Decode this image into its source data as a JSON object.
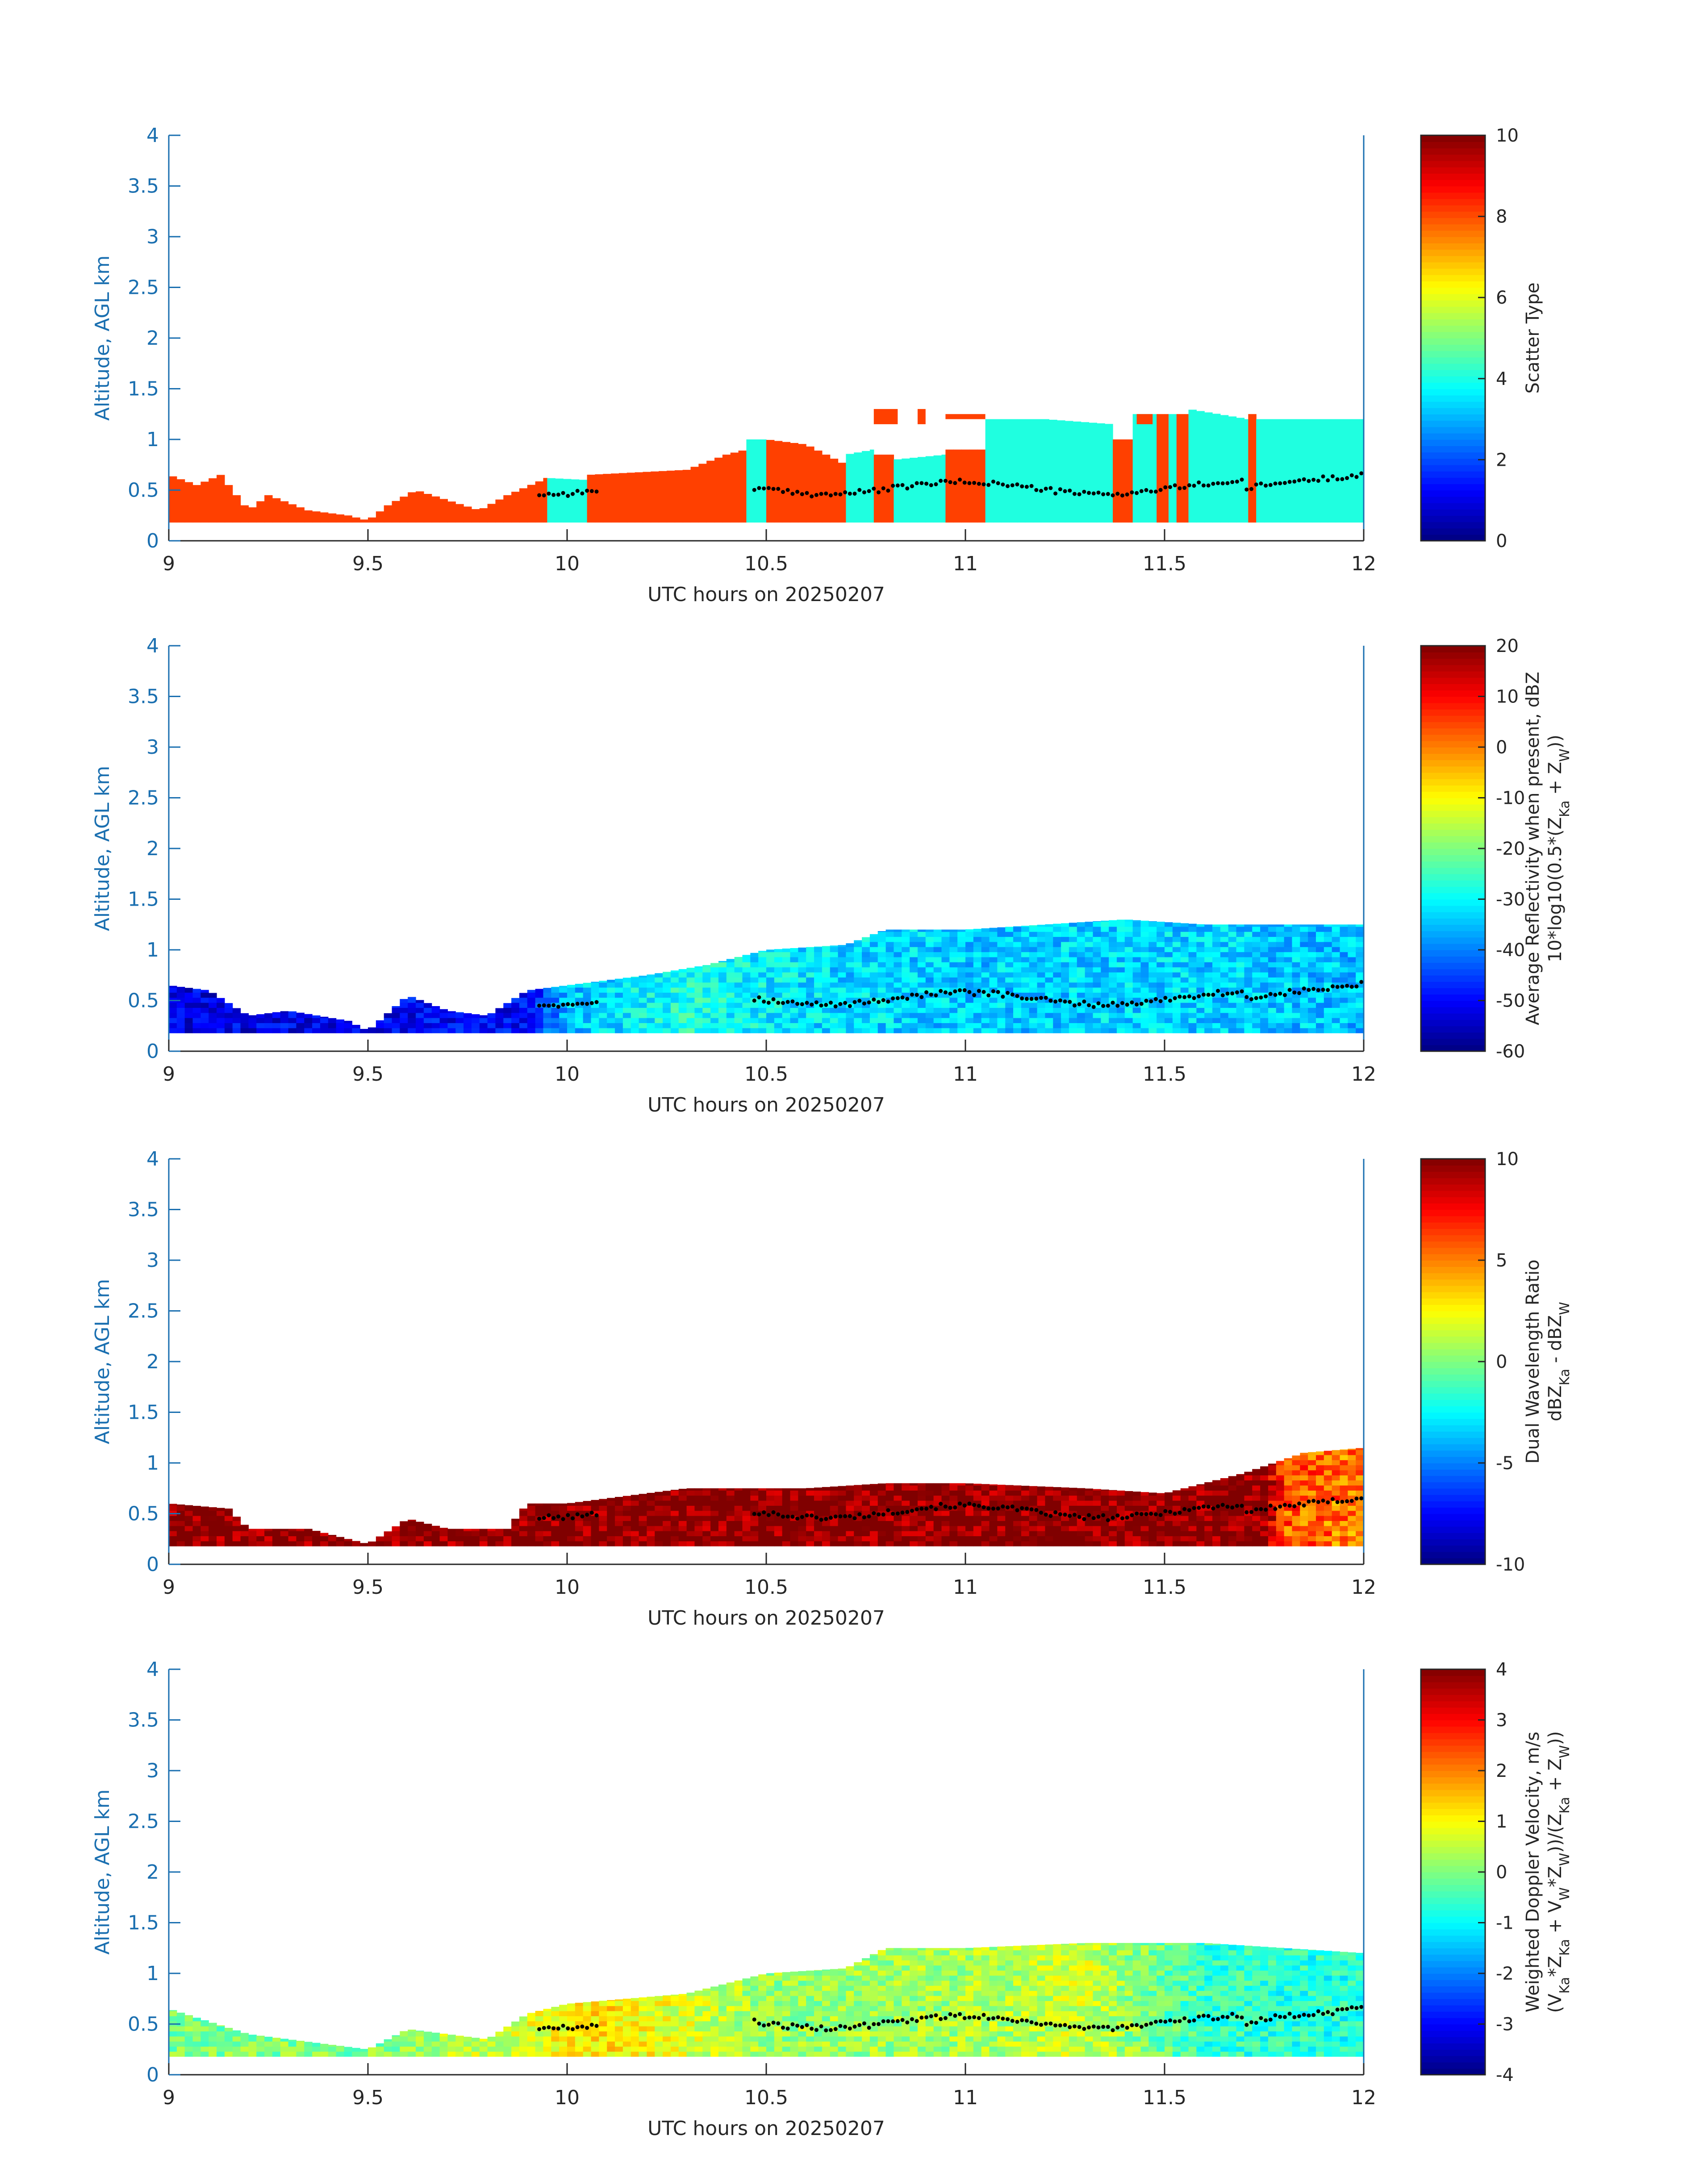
{
  "figure": {
    "axis_color": "#1a6fb0",
    "text_color": "#262626",
    "colormap": "jet"
  },
  "chart_data": [
    {
      "type": "heatmap",
      "title": "",
      "xlabel": "UTC hours on 20250207",
      "ylabel": "Altitude, AGL km",
      "xlim": [
        9,
        12
      ],
      "ylim": [
        0,
        4
      ],
      "xticks": [
        "9",
        "9.5",
        "10",
        "10.5",
        "11",
        "11.5",
        "12"
      ],
      "yticks": [
        "0",
        "0.5",
        "1",
        "1.5",
        "2",
        "2.5",
        "3",
        "3.5",
        "4"
      ],
      "colorbar": {
        "clim": [
          0,
          10
        ],
        "ticks": [
          "0",
          "2",
          "4",
          "6",
          "8",
          "10"
        ],
        "label_lines": [
          "Scatter Type"
        ]
      },
      "field": {
        "kind": "categorical",
        "classes": [
          {
            "value": 8.8,
            "color": "#ff4000"
          },
          {
            "value": 3.8,
            "color": "#1fffe0"
          }
        ],
        "segments": [
          {
            "x0": 9.0,
            "x1": 9.95,
            "class": 8.8,
            "top_km": [
              [
                9.0,
                0.65
              ],
              [
                9.07,
                0.55
              ],
              [
                9.13,
                0.65
              ],
              [
                9.2,
                0.3
              ],
              [
                9.25,
                0.45
              ],
              [
                9.35,
                0.3
              ],
              [
                9.45,
                0.25
              ],
              [
                9.5,
                0.2
              ],
              [
                9.55,
                0.35
              ],
              [
                9.62,
                0.5
              ],
              [
                9.7,
                0.4
              ],
              [
                9.78,
                0.3
              ],
              [
                9.85,
                0.45
              ],
              [
                9.95,
                0.62
              ]
            ]
          },
          {
            "x0": 9.95,
            "x1": 10.05,
            "class": 3.8,
            "top_km": [
              [
                9.95,
                0.62
              ],
              [
                10.05,
                0.6
              ]
            ]
          },
          {
            "x0": 10.05,
            "x1": 10.45,
            "class": 8.8,
            "top_km": [
              [
                10.05,
                0.65
              ],
              [
                10.3,
                0.7
              ],
              [
                10.4,
                0.85
              ],
              [
                10.45,
                0.9
              ]
            ]
          },
          {
            "x0": 10.45,
            "x1": 10.5,
            "class": 3.8,
            "top_km": [
              [
                10.45,
                1.0
              ],
              [
                10.5,
                1.0
              ]
            ]
          },
          {
            "x0": 10.5,
            "x1": 10.7,
            "class": 8.8,
            "top_km": [
              [
                10.5,
                1.0
              ],
              [
                10.6,
                0.95
              ],
              [
                10.7,
                0.75
              ]
            ]
          },
          {
            "x0": 10.7,
            "x1": 10.77,
            "class": 3.8,
            "top_km": [
              [
                10.7,
                0.85
              ],
              [
                10.77,
                0.9
              ]
            ]
          },
          {
            "x0": 10.77,
            "x1": 10.82,
            "class": 8.8,
            "top_km": [
              [
                10.77,
                0.85
              ],
              [
                10.82,
                0.85
              ]
            ]
          },
          {
            "x0": 10.82,
            "x1": 10.95,
            "class": 3.8,
            "top_km": [
              [
                10.82,
                0.8
              ],
              [
                10.95,
                0.85
              ]
            ]
          },
          {
            "x0": 10.95,
            "x1": 11.05,
            "class": 8.8,
            "top_km": [
              [
                10.95,
                0.9
              ],
              [
                11.05,
                0.9
              ]
            ]
          },
          {
            "x0": 11.05,
            "x1": 11.37,
            "class": 3.8,
            "top_km": [
              [
                11.05,
                1.2
              ],
              [
                11.2,
                1.2
              ],
              [
                11.37,
                1.15
              ]
            ]
          },
          {
            "x0": 11.37,
            "x1": 11.42,
            "class": 8.8,
            "top_km": [
              [
                11.37,
                1.0
              ],
              [
                11.42,
                1.0
              ]
            ]
          },
          {
            "x0": 11.42,
            "x1": 11.48,
            "class": 3.8,
            "top_km": [
              [
                11.42,
                1.25
              ],
              [
                11.48,
                1.25
              ]
            ]
          },
          {
            "x0": 11.48,
            "x1": 11.51,
            "class": 8.8,
            "top_km": [
              [
                11.48,
                1.25
              ],
              [
                11.51,
                1.25
              ]
            ]
          },
          {
            "x0": 11.51,
            "x1": 11.53,
            "class": 3.8,
            "top_km": [
              [
                11.51,
                1.25
              ],
              [
                11.53,
                1.25
              ]
            ]
          },
          {
            "x0": 11.53,
            "x1": 11.56,
            "class": 8.8,
            "top_km": [
              [
                11.53,
                1.25
              ],
              [
                11.56,
                1.25
              ]
            ]
          },
          {
            "x0": 11.56,
            "x1": 11.71,
            "class": 3.8,
            "top_km": [
              [
                11.56,
                1.3
              ],
              [
                11.71,
                1.2
              ]
            ]
          },
          {
            "x0": 11.71,
            "x1": 11.73,
            "class": 8.8,
            "top_km": [
              [
                11.71,
                1.25
              ],
              [
                11.73,
                1.25
              ]
            ]
          },
          {
            "x0": 11.73,
            "x1": 12.0,
            "class": 3.8,
            "top_km": [
              [
                11.73,
                1.2
              ],
              [
                12.0,
                1.2
              ]
            ]
          }
        ],
        "patches": [
          {
            "x0": 10.77,
            "x1": 10.83,
            "y0": 1.15,
            "y1": 1.3,
            "class": 8.8
          },
          {
            "x0": 10.88,
            "x1": 10.9,
            "y0": 1.15,
            "y1": 1.3,
            "class": 8.8
          },
          {
            "x0": 10.95,
            "x1": 11.05,
            "y0": 1.2,
            "y1": 1.25,
            "class": 8.8
          },
          {
            "x0": 11.43,
            "x1": 11.47,
            "y0": 1.15,
            "y1": 1.25,
            "class": 8.8
          }
        ]
      }
    },
    {
      "type": "heatmap",
      "title": "",
      "xlabel": "UTC hours on 20250207",
      "ylabel": "Altitude, AGL km",
      "xlim": [
        9,
        12
      ],
      "ylim": [
        0,
        4
      ],
      "xticks": [
        "9",
        "9.5",
        "10",
        "10.5",
        "11",
        "11.5",
        "12"
      ],
      "yticks": [
        "0",
        "0.5",
        "1",
        "1.5",
        "2",
        "2.5",
        "3",
        "3.5",
        "4"
      ],
      "colorbar": {
        "clim": [
          -60,
          20
        ],
        "ticks": [
          "-60",
          "-50",
          "-40",
          "-30",
          "-20",
          "-10",
          "0",
          "10",
          "20"
        ],
        "label_lines": [
          "Average Reflectivity when present, dBZ",
          "10*log10(0.5*(Z",
          "Ka",
          " + Z",
          "W",
          "))"
        ]
      },
      "field": {
        "kind": "continuous",
        "top_km": [
          [
            9.0,
            0.65
          ],
          [
            9.1,
            0.6
          ],
          [
            9.2,
            0.35
          ],
          [
            9.3,
            0.4
          ],
          [
            9.45,
            0.3
          ],
          [
            9.5,
            0.2
          ],
          [
            9.6,
            0.55
          ],
          [
            9.7,
            0.4
          ],
          [
            9.8,
            0.35
          ],
          [
            9.9,
            0.6
          ],
          [
            10.0,
            0.65
          ],
          [
            10.2,
            0.75
          ],
          [
            10.35,
            0.85
          ],
          [
            10.5,
            1.0
          ],
          [
            10.7,
            1.05
          ],
          [
            10.8,
            1.2
          ],
          [
            11.0,
            1.2
          ],
          [
            11.2,
            1.25
          ],
          [
            11.4,
            1.3
          ],
          [
            11.6,
            1.25
          ],
          [
            12.0,
            1.25
          ]
        ],
        "profile": [
          [
            9.0,
            -52
          ],
          [
            9.9,
            -50
          ],
          [
            10.0,
            -35
          ],
          [
            10.3,
            -28
          ],
          [
            10.6,
            -32
          ],
          [
            11.0,
            -34
          ],
          [
            11.5,
            -33
          ],
          [
            12.0,
            -35
          ]
        ],
        "noise": 6
      }
    },
    {
      "type": "heatmap",
      "title": "",
      "xlabel": "UTC hours on 20250207",
      "ylabel": "Altitude, AGL km",
      "xlim": [
        9,
        12
      ],
      "ylim": [
        0,
        4
      ],
      "xticks": [
        "9",
        "9.5",
        "10",
        "10.5",
        "11",
        "11.5",
        "12"
      ],
      "yticks": [
        "0",
        "0.5",
        "1",
        "1.5",
        "2",
        "2.5",
        "3",
        "3.5",
        "4"
      ],
      "colorbar": {
        "clim": [
          -10,
          10
        ],
        "ticks": [
          "-10",
          "-5",
          "0",
          "5",
          "10"
        ],
        "label_lines": [
          "Dual Wavelength Ratio",
          "dBZ",
          "Ka",
          " - dBZ",
          "W"
        ]
      },
      "field": {
        "kind": "continuous",
        "top_km": [
          [
            9.0,
            0.6
          ],
          [
            9.15,
            0.55
          ],
          [
            9.2,
            0.35
          ],
          [
            9.35,
            0.35
          ],
          [
            9.5,
            0.2
          ],
          [
            9.6,
            0.45
          ],
          [
            9.7,
            0.35
          ],
          [
            9.85,
            0.35
          ],
          [
            9.9,
            0.6
          ],
          [
            10.0,
            0.6
          ],
          [
            10.3,
            0.75
          ],
          [
            10.6,
            0.75
          ],
          [
            10.8,
            0.8
          ],
          [
            11.0,
            0.8
          ],
          [
            11.3,
            0.75
          ],
          [
            11.5,
            0.7
          ],
          [
            11.7,
            0.9
          ],
          [
            11.85,
            1.1
          ],
          [
            12.0,
            1.15
          ]
        ],
        "profile": [
          [
            9.0,
            10
          ],
          [
            11.75,
            10
          ],
          [
            11.8,
            6
          ],
          [
            12.0,
            5
          ]
        ],
        "noise": 2
      }
    },
    {
      "type": "heatmap",
      "title": "",
      "xlabel": "UTC hours on 20250207",
      "ylabel": "Altitude, AGL km",
      "xlim": [
        9,
        12
      ],
      "ylim": [
        0,
        4
      ],
      "xticks": [
        "9",
        "9.5",
        "10",
        "10.5",
        "11",
        "11.5",
        "12"
      ],
      "yticks": [
        "0",
        "0.5",
        "1",
        "1.5",
        "2",
        "2.5",
        "3",
        "3.5",
        "4"
      ],
      "colorbar": {
        "clim": [
          -4,
          4
        ],
        "ticks": [
          "-4",
          "-3",
          "-2",
          "-1",
          "0",
          "1",
          "2",
          "3",
          "4"
        ],
        "label_lines": [
          "Weighted Doppler Velocity, m/s",
          "(V",
          "Ka",
          "*Z",
          "Ka",
          " + V",
          "W",
          "*Z",
          "W",
          "))/(Z",
          "Ka",
          " + Z",
          "W",
          "))"
        ]
      },
      "field": {
        "kind": "continuous",
        "top_km": [
          [
            9.0,
            0.65
          ],
          [
            9.2,
            0.4
          ],
          [
            9.5,
            0.25
          ],
          [
            9.6,
            0.45
          ],
          [
            9.8,
            0.35
          ],
          [
            9.9,
            0.6
          ],
          [
            10.0,
            0.7
          ],
          [
            10.3,
            0.8
          ],
          [
            10.5,
            1.0
          ],
          [
            10.7,
            1.05
          ],
          [
            10.8,
            1.25
          ],
          [
            11.0,
            1.25
          ],
          [
            11.3,
            1.3
          ],
          [
            11.6,
            1.3
          ],
          [
            12.0,
            1.2
          ]
        ],
        "profile": [
          [
            9.0,
            0
          ],
          [
            9.5,
            0
          ],
          [
            9.9,
            0.8
          ],
          [
            10.1,
            1.2
          ],
          [
            10.5,
            0.2
          ],
          [
            11.0,
            0.3
          ],
          [
            11.3,
            0.6
          ],
          [
            11.6,
            -0.6
          ],
          [
            12.0,
            -0.8
          ]
        ],
        "noise": 0.6
      }
    }
  ]
}
